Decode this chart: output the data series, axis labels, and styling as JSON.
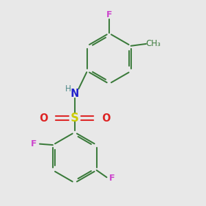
{
  "background_color": "#e8e8e8",
  "colors": {
    "F": "#cc44cc",
    "N": "#2222cc",
    "H": "#4d8888",
    "S": "#cccc00",
    "O": "#dd2222",
    "C_bond": "#3a7a3a",
    "CH3": "#3a7a3a"
  },
  "figsize": [
    3.0,
    3.0
  ],
  "dpi": 100,
  "xlim": [
    0,
    10
  ],
  "ylim": [
    0,
    10
  ]
}
